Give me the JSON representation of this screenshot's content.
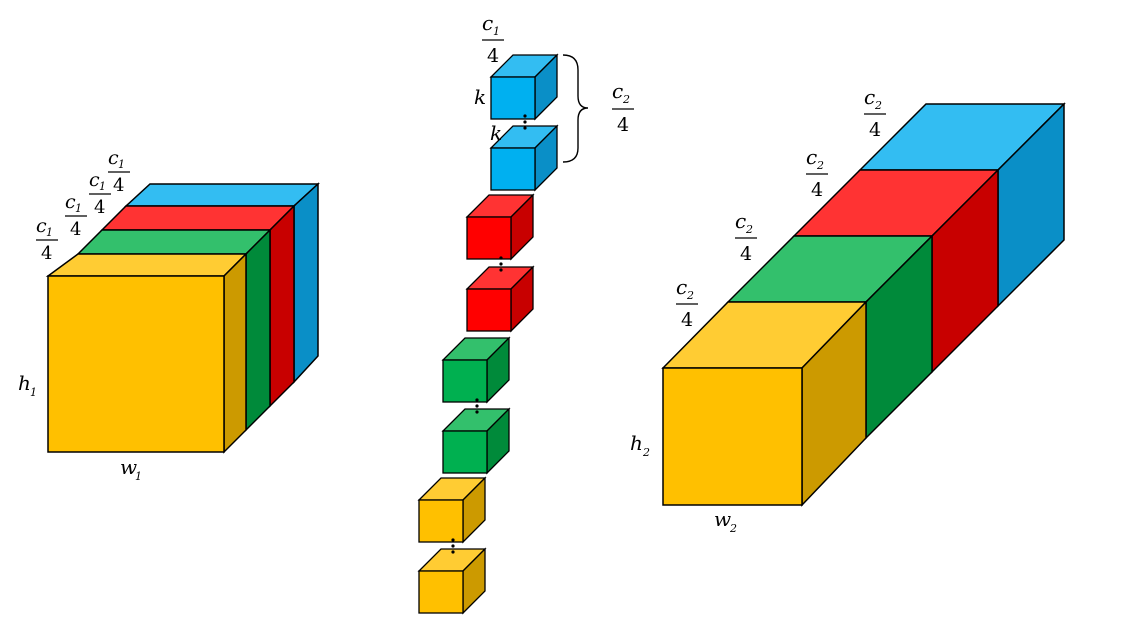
{
  "colors": {
    "yellow": "#FFC000",
    "green": "#00B050",
    "red": "#FF0000",
    "blue": "#00B0F0",
    "stroke": "#000000"
  },
  "labels": {
    "h1": "h",
    "h1_sub": "1",
    "w1": "w",
    "w1_sub": "1",
    "h2": "h",
    "h2_sub": "2",
    "w2": "w",
    "w2_sub": "2",
    "k": "k",
    "c": "c",
    "c1_sub": "1",
    "c2_sub": "2",
    "den": "4",
    "dots": "⋮"
  },
  "fractions": {
    "c1_over_4": "c1/4",
    "c2_over_4": "c2/4"
  }
}
